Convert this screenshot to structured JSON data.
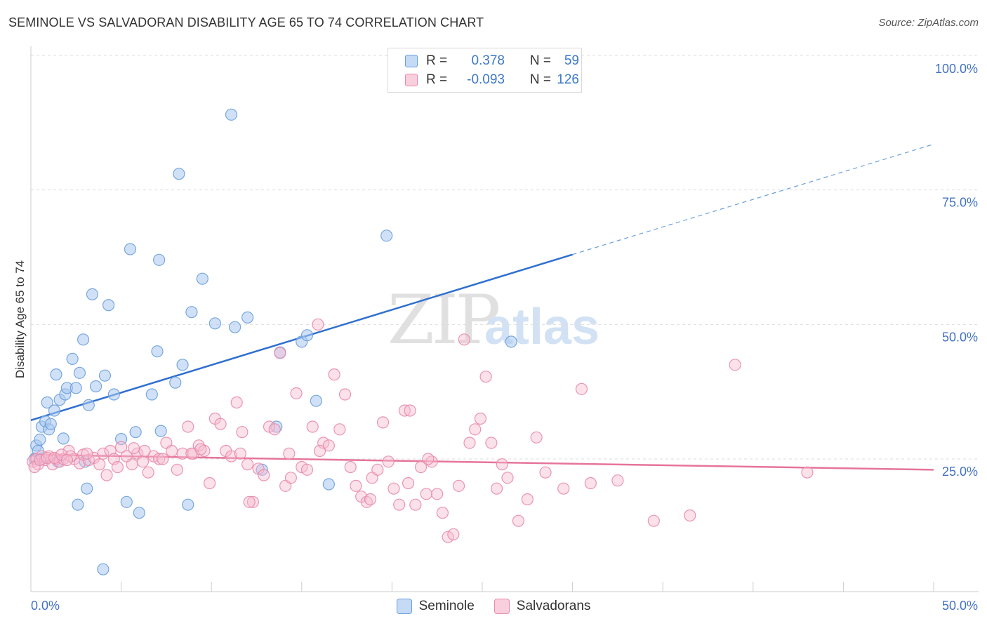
{
  "header": {
    "title": "SEMINOLE VS SALVADORAN DISABILITY AGE 65 TO 74 CORRELATION CHART",
    "source": "Source: ZipAtlas.com"
  },
  "watermark": {
    "zip": "ZIP",
    "atlas": "atlas"
  },
  "legend": {
    "rows": [
      {
        "r_label": "R =",
        "r_value": "0.378",
        "n_label": "N =",
        "n_value": "59",
        "color": "#a9c8f0",
        "stroke": "#6a9fdc"
      },
      {
        "r_label": "R =",
        "r_value": "-0.093",
        "n_label": "N =",
        "n_value": "126",
        "color": "#f7bcd0",
        "stroke": "#e88aaa"
      }
    ]
  },
  "bottom_legend": [
    {
      "label": "Seminole",
      "color": "#c5dbf5",
      "stroke": "#6a9fdc"
    },
    {
      "label": "Salvadorans",
      "color": "#f9cedd",
      "stroke": "#e88aaa"
    }
  ],
  "chart_data": {
    "type": "scatter",
    "title": "SEMINOLE VS SALVADORAN DISABILITY AGE 65 TO 74 CORRELATION CHART",
    "xlabel": "",
    "ylabel": "Disability Age 65 to 74",
    "xlim": [
      0,
      50
    ],
    "ylim": [
      0,
      100
    ],
    "x_tick_labels": [
      "0.0%",
      "50.0%"
    ],
    "y_ticks": [
      25,
      50,
      75,
      100
    ],
    "y_tick_labels": [
      "25.0%",
      "50.0%",
      "75.0%",
      "100.0%"
    ],
    "grid": true,
    "series": [
      {
        "name": "Seminole",
        "color": "#6a9fdc",
        "fill": "#a9c8f0",
        "points": [
          [
            0.3,
            27.5
          ],
          [
            0.4,
            26.5
          ],
          [
            0.5,
            28.6
          ],
          [
            0.6,
            31
          ],
          [
            0.6,
            25
          ],
          [
            0.8,
            32
          ],
          [
            0.9,
            35.5
          ],
          [
            1.0,
            30.5
          ],
          [
            1.1,
            31.5
          ],
          [
            1.3,
            34
          ],
          [
            1.4,
            40.7
          ],
          [
            1.6,
            36
          ],
          [
            1.8,
            28.8
          ],
          [
            1.9,
            37
          ],
          [
            2.0,
            38.2
          ],
          [
            2.3,
            43.6
          ],
          [
            2.5,
            38.2
          ],
          [
            2.7,
            41
          ],
          [
            2.9,
            47.2
          ],
          [
            3.2,
            35
          ],
          [
            3.4,
            55.6
          ],
          [
            3.6,
            38.5
          ],
          [
            4.1,
            40.5
          ],
          [
            4.3,
            53.6
          ],
          [
            4.6,
            37
          ],
          [
            5.0,
            28.7
          ],
          [
            5.3,
            17
          ],
          [
            5.5,
            64
          ],
          [
            5.8,
            30
          ],
          [
            6.0,
            15
          ],
          [
            6.7,
            37
          ],
          [
            7.0,
            45
          ],
          [
            7.2,
            30.2
          ],
          [
            7.1,
            62
          ],
          [
            8.0,
            39.2
          ],
          [
            8.2,
            78
          ],
          [
            8.4,
            42.5
          ],
          [
            8.7,
            16.5
          ],
          [
            8.9,
            52.3
          ],
          [
            9.5,
            58.5
          ],
          [
            10.2,
            50.2
          ],
          [
            11.1,
            89
          ],
          [
            11.3,
            49.5
          ],
          [
            12.0,
            51.3
          ],
          [
            12.8,
            23
          ],
          [
            13.6,
            31
          ],
          [
            13.8,
            44.8
          ],
          [
            15.0,
            46.8
          ],
          [
            15.3,
            48
          ],
          [
            15.8,
            35.8
          ],
          [
            16.5,
            20.3
          ],
          [
            19.7,
            66.5
          ],
          [
            26.6,
            46.8
          ],
          [
            2.6,
            16.5
          ],
          [
            3.1,
            19.5
          ],
          [
            4.0,
            4.5
          ],
          [
            0.2,
            25
          ],
          [
            1.5,
            24.5
          ],
          [
            3.0,
            24.5
          ]
        ],
        "trend": {
          "x0": 0,
          "y0": 32.2,
          "x1": 30,
          "y1": 63,
          "x_dash_end": 50,
          "y_dash_end": 83.5
        }
      },
      {
        "name": "Salvadorans",
        "color": "#e88aaa",
        "fill": "#f7bcd0",
        "points": [
          [
            0.1,
            24.5
          ],
          [
            0.3,
            25
          ],
          [
            0.4,
            24
          ],
          [
            0.6,
            25.5
          ],
          [
            0.8,
            24.8
          ],
          [
            1.0,
            25.5
          ],
          [
            1.2,
            24
          ],
          [
            1.4,
            25
          ],
          [
            1.6,
            24.5
          ],
          [
            1.8,
            25
          ],
          [
            2.1,
            26.5
          ],
          [
            2.4,
            25
          ],
          [
            2.7,
            24.2
          ],
          [
            2.9,
            25.8
          ],
          [
            3.2,
            24.8
          ],
          [
            3.5,
            25.2
          ],
          [
            3.8,
            24
          ],
          [
            4.0,
            26
          ],
          [
            4.2,
            22
          ],
          [
            4.4,
            26.5
          ],
          [
            4.6,
            25
          ],
          [
            4.8,
            23.5
          ],
          [
            5.0,
            27.2
          ],
          [
            5.3,
            25.5
          ],
          [
            5.6,
            24
          ],
          [
            5.9,
            26
          ],
          [
            6.2,
            24.5
          ],
          [
            6.5,
            22.5
          ],
          [
            6.8,
            25.5
          ],
          [
            7.1,
            25
          ],
          [
            7.5,
            28
          ],
          [
            7.8,
            26.5
          ],
          [
            8.1,
            23
          ],
          [
            8.4,
            26
          ],
          [
            8.7,
            31
          ],
          [
            9.0,
            26
          ],
          [
            9.3,
            27.5
          ],
          [
            9.6,
            26.5
          ],
          [
            9.9,
            20.5
          ],
          [
            10.2,
            32.5
          ],
          [
            10.5,
            31.5
          ],
          [
            10.8,
            26.5
          ],
          [
            11.1,
            25.5
          ],
          [
            11.4,
            35.5
          ],
          [
            11.7,
            30
          ],
          [
            12.0,
            24
          ],
          [
            12.3,
            17
          ],
          [
            12.6,
            23.2
          ],
          [
            12.9,
            22
          ],
          [
            13.2,
            31
          ],
          [
            13.5,
            30.5
          ],
          [
            13.8,
            44.7
          ],
          [
            14.1,
            20
          ],
          [
            14.4,
            21.5
          ],
          [
            14.7,
            37.2
          ],
          [
            15.0,
            23.5
          ],
          [
            15.3,
            23
          ],
          [
            15.6,
            31
          ],
          [
            15.9,
            50
          ],
          [
            16.2,
            28
          ],
          [
            16.5,
            27.5
          ],
          [
            16.8,
            40.7
          ],
          [
            17.1,
            30.5
          ],
          [
            17.4,
            37
          ],
          [
            17.7,
            23.5
          ],
          [
            18.0,
            20
          ],
          [
            18.3,
            18
          ],
          [
            18.6,
            17
          ],
          [
            18.9,
            21.5
          ],
          [
            19.2,
            23
          ],
          [
            19.5,
            31.8
          ],
          [
            19.8,
            24.5
          ],
          [
            20.1,
            19.5
          ],
          [
            20.4,
            16.5
          ],
          [
            20.7,
            34
          ],
          [
            21.0,
            34
          ],
          [
            21.3,
            16.5
          ],
          [
            21.6,
            23.5
          ],
          [
            21.9,
            18.5
          ],
          [
            22.2,
            24.5
          ],
          [
            22.5,
            18.5
          ],
          [
            22.8,
            15
          ],
          [
            23.1,
            10.5
          ],
          [
            23.4,
            11
          ],
          [
            23.7,
            20
          ],
          [
            24.0,
            47.2
          ],
          [
            24.3,
            28
          ],
          [
            24.6,
            30.5
          ],
          [
            24.9,
            32.5
          ],
          [
            25.2,
            40.3
          ],
          [
            25.5,
            28
          ],
          [
            25.8,
            19.5
          ],
          [
            26.1,
            24
          ],
          [
            26.4,
            21.5
          ],
          [
            27.0,
            13.5
          ],
          [
            27.5,
            17.5
          ],
          [
            28.0,
            29
          ],
          [
            28.5,
            22.5
          ],
          [
            29.5,
            19.5
          ],
          [
            30.5,
            38
          ],
          [
            31.0,
            20.5
          ],
          [
            32.5,
            21
          ],
          [
            34.5,
            13.5
          ],
          [
            36.5,
            14.5
          ],
          [
            39.0,
            42.5
          ],
          [
            43.0,
            22.5
          ],
          [
            9.4,
            26.8
          ],
          [
            6.3,
            26.5
          ],
          [
            16.0,
            26.5
          ],
          [
            12.1,
            17
          ],
          [
            7.3,
            25
          ],
          [
            14.3,
            26
          ],
          [
            11.6,
            26
          ],
          [
            3.1,
            26
          ],
          [
            5.7,
            27
          ],
          [
            2.2,
            25.5
          ],
          [
            8.9,
            26
          ],
          [
            18.8,
            17.5
          ],
          [
            20.9,
            20.5
          ],
          [
            22.0,
            25
          ],
          [
            0.2,
            23.5
          ],
          [
            0.5,
            24.8
          ],
          [
            0.9,
            25.2
          ],
          [
            1.3,
            25.2
          ],
          [
            1.7,
            25.8
          ],
          [
            2.0,
            24.8
          ]
        ],
        "trend": {
          "x0": 0,
          "y0": 25.8,
          "x1": 50,
          "y1": 23.0
        }
      }
    ]
  }
}
